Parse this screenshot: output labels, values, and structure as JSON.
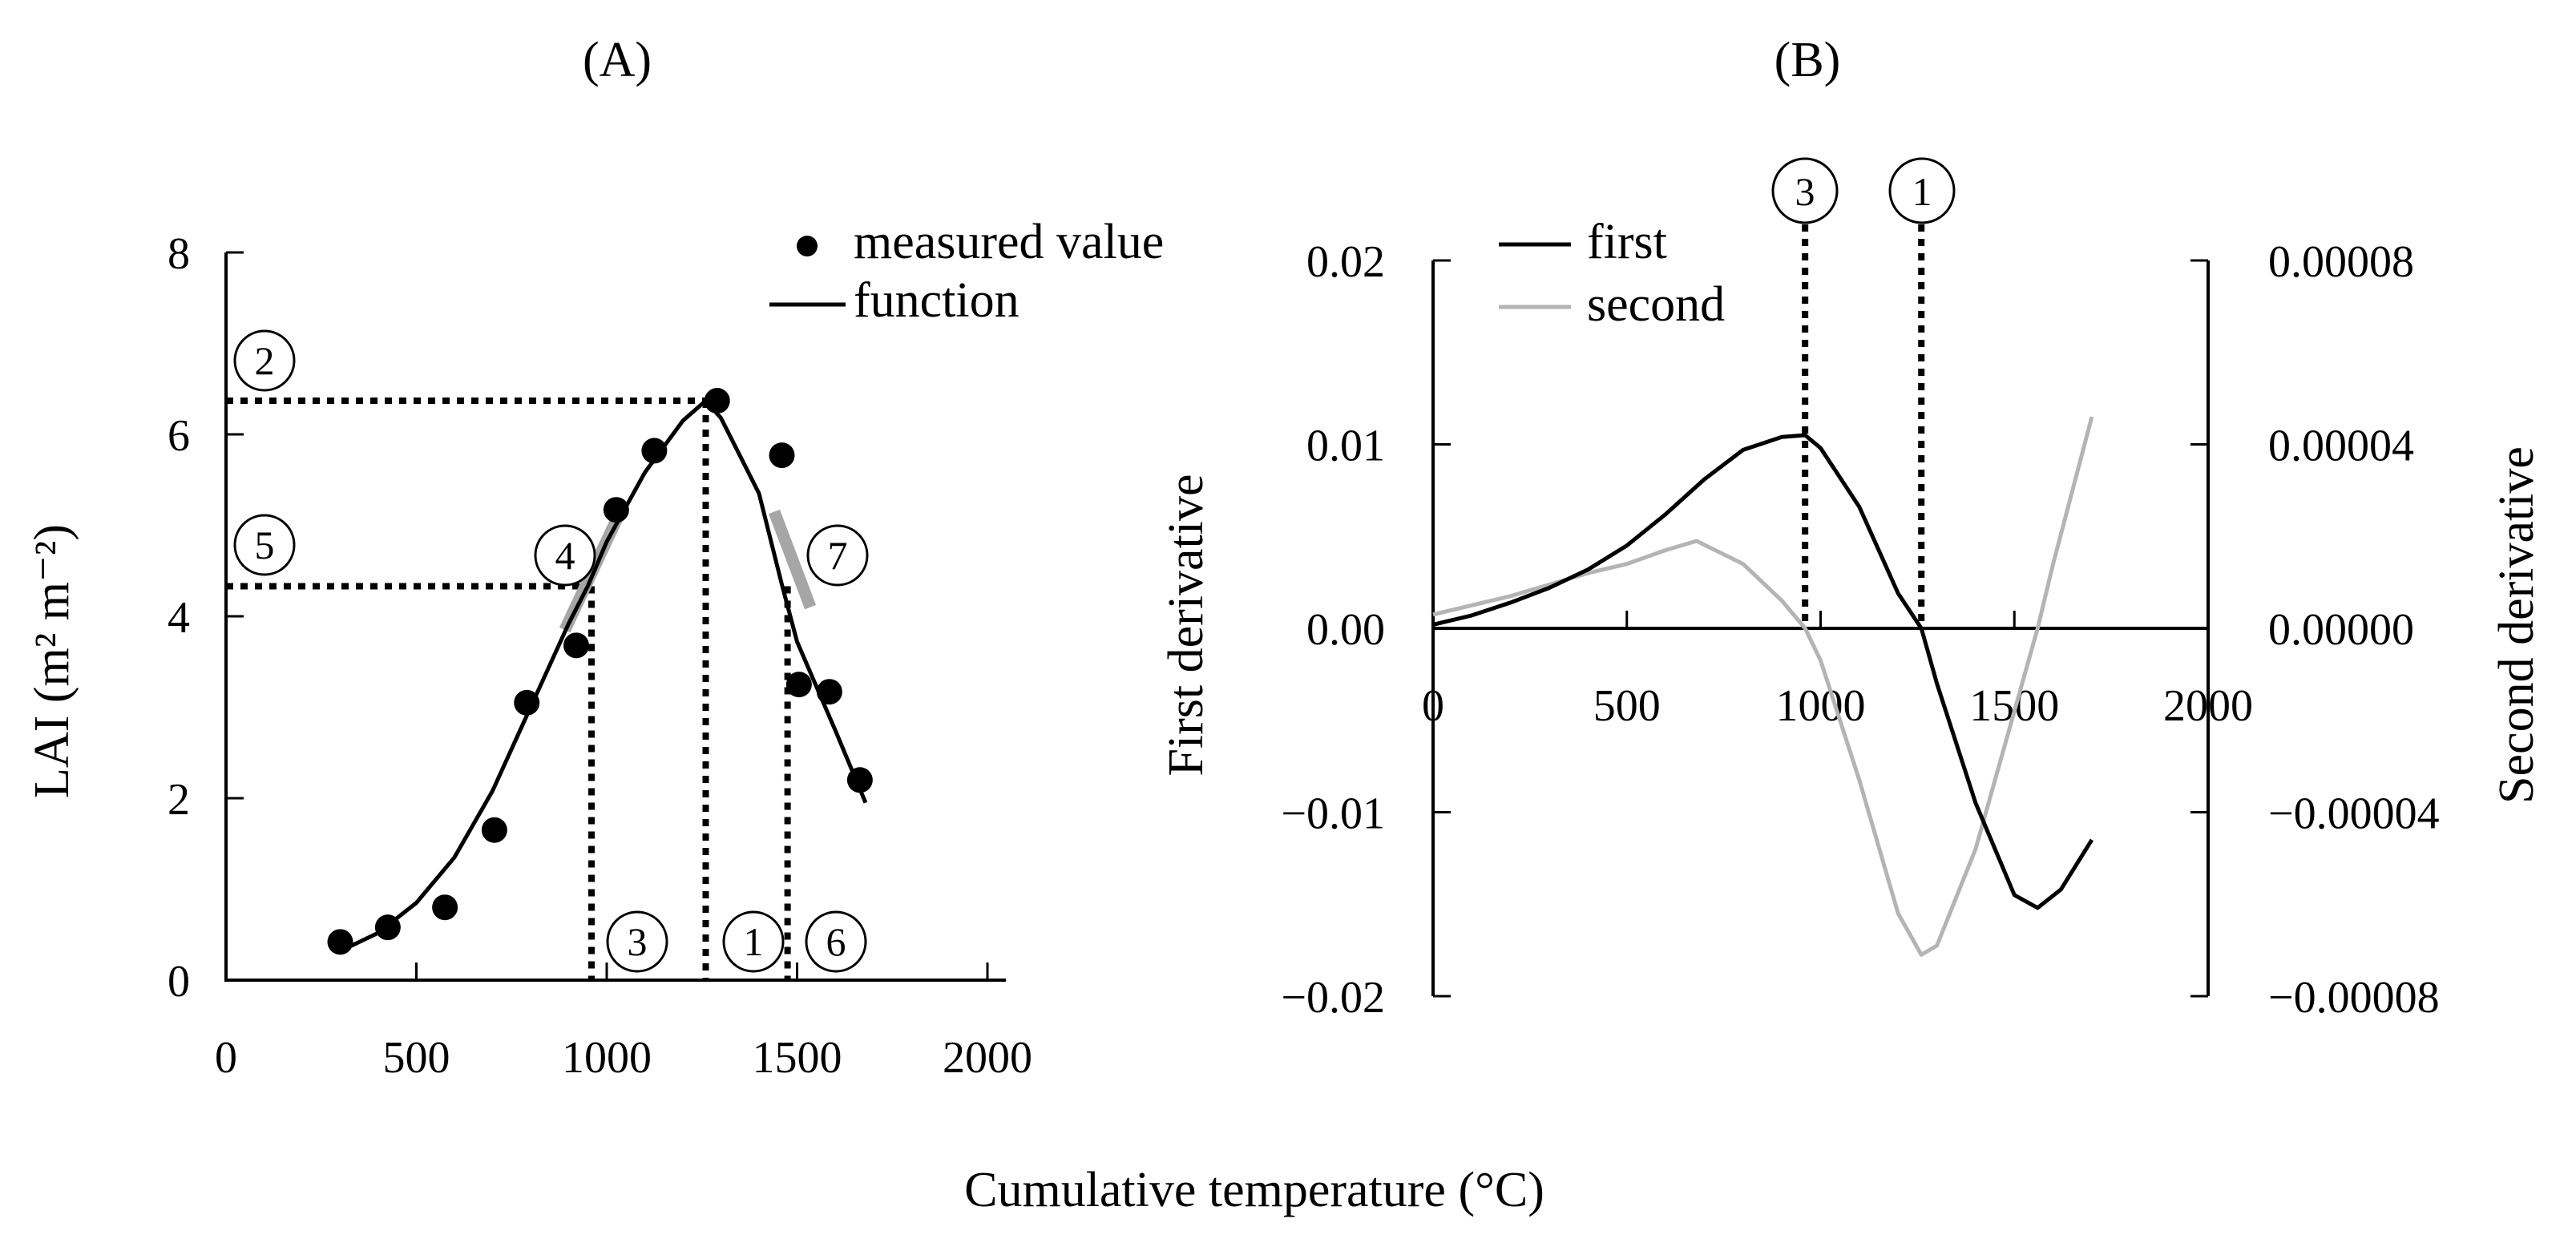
{
  "xlabel": "Cumulative temperature (°C)",
  "chart_data": [
    {
      "id": "A",
      "type": "scatter",
      "panel_title": "(A)",
      "title": "(A)",
      "ylabel": "LAI (m² m⁻²)",
      "xlim": [
        0,
        2000
      ],
      "ylim": [
        0,
        8
      ],
      "xticks": [
        0,
        500,
        1000,
        1500,
        2000
      ],
      "xtick_labels": [
        "0",
        "500",
        "1000",
        "1500",
        "2000"
      ],
      "yticks": [
        0,
        2,
        4,
        6,
        8
      ],
      "ytick_labels": [
        "0",
        "2",
        "4",
        "6",
        "8"
      ],
      "legend": [
        {
          "name": "measured value",
          "style": "marker"
        },
        {
          "name": "function",
          "style": "line"
        }
      ],
      "legend_position": "top-right",
      "measured": {
        "x": [
          300,
          425,
          575,
          705,
          790,
          920,
          1025,
          1125,
          1290,
          1460,
          1505,
          1585,
          1665
        ],
        "y": [
          0.42,
          0.58,
          0.8,
          1.65,
          3.05,
          3.68,
          5.17,
          5.82,
          6.37,
          5.77,
          3.25,
          3.17,
          2.2
        ]
      },
      "function": {
        "x": [
          300,
          400,
          500,
          600,
          700,
          800,
          900,
          950,
          1000,
          1100,
          1200,
          1260,
          1300,
          1400,
          1460,
          1500,
          1600,
          1680
        ],
        "y": [
          0.32,
          0.52,
          0.85,
          1.35,
          2.08,
          3.0,
          3.92,
          4.33,
          4.82,
          5.58,
          6.15,
          6.37,
          6.18,
          5.35,
          4.35,
          3.72,
          2.75,
          1.95
        ]
      },
      "tangents": [
        {
          "label": "4",
          "x1": 890,
          "y1": 3.85,
          "x2": 1030,
          "y2": 5.1
        },
        {
          "label": "7",
          "x1": 1440,
          "y1": 5.15,
          "x2": 1535,
          "y2": 4.1
        }
      ],
      "vertical_guides": [
        {
          "label": "3",
          "x": 960,
          "y_top": 4.33
        },
        {
          "label": "1",
          "x": 1260,
          "y_top": 6.37
        },
        {
          "label": "6",
          "x": 1475,
          "y_top": 4.33
        }
      ],
      "horizontal_guides": [
        {
          "label": "2",
          "y": 6.37,
          "x_end": 1260
        },
        {
          "label": "5",
          "y": 4.33,
          "x_end": 960
        }
      ],
      "callout_labels": [
        "1",
        "2",
        "3",
        "4",
        "5",
        "6",
        "7"
      ]
    },
    {
      "id": "B",
      "type": "line",
      "panel_title": "(B)",
      "title": "(B)",
      "ylabel": "First derivative",
      "ylabel_right": "Second derivative",
      "xlim": [
        0,
        2000
      ],
      "ylim": [
        -0.02,
        0.02
      ],
      "ylim_right": [
        -8e-05,
        8e-05
      ],
      "xticks": [
        0,
        500,
        1000,
        1500,
        2000
      ],
      "xtick_labels": [
        "0",
        "500",
        "1000",
        "1500",
        "2000"
      ],
      "yticks": [
        -0.02,
        -0.01,
        0.0,
        0.01,
        0.02
      ],
      "ytick_labels": [
        "−0.02",
        "−0.01",
        "0.00",
        "0.01",
        "0.02"
      ],
      "yticks_right": [
        -8e-05,
        -4e-05,
        0.0,
        4e-05,
        8e-05
      ],
      "ytick_labels_right": [
        "−0.00008",
        "−0.00004",
        "0.00000",
        "0.00004",
        "0.00008"
      ],
      "legend": [
        {
          "name": "first",
          "color": "#000000"
        },
        {
          "name": "second",
          "color": "#b4b4b4"
        }
      ],
      "legend_position": "top-left",
      "series": [
        {
          "name": "first",
          "axis": "left",
          "color": "#000000",
          "x": [
            0,
            100,
            200,
            300,
            400,
            500,
            600,
            700,
            800,
            900,
            960,
            1000,
            1100,
            1200,
            1260,
            1300,
            1400,
            1500,
            1560,
            1620,
            1700
          ],
          "y": [
            0.0002,
            0.0007,
            0.0014,
            0.0022,
            0.0032,
            0.0045,
            0.0062,
            0.0081,
            0.0097,
            0.0104,
            0.0105,
            0.0098,
            0.0066,
            0.0019,
            0.0,
            -0.003,
            -0.0095,
            -0.0145,
            -0.0152,
            -0.0142,
            -0.0115
          ]
        },
        {
          "name": "second",
          "axis": "right",
          "color": "#b4b4b4",
          "x": [
            0,
            200,
            400,
            500,
            600,
            680,
            800,
            900,
            960,
            1000,
            1100,
            1200,
            1260,
            1300,
            1400,
            1500,
            1560,
            1600,
            1700
          ],
          "y": [
            3e-06,
            7e-06,
            1.2e-05,
            1.4e-05,
            1.7e-05,
            1.9e-05,
            1.4e-05,
            6e-06,
            0.0,
            -7e-06,
            -3.3e-05,
            -6.2e-05,
            -7.1e-05,
            -6.9e-05,
            -4.8e-05,
            -1.8e-05,
            0.0,
            1.4e-05,
            4.6e-05
          ]
        }
      ],
      "vertical_guides": [
        {
          "label": "3",
          "x": 960
        },
        {
          "label": "1",
          "x": 1260
        }
      ],
      "callout_labels": [
        "3",
        "1"
      ]
    }
  ]
}
